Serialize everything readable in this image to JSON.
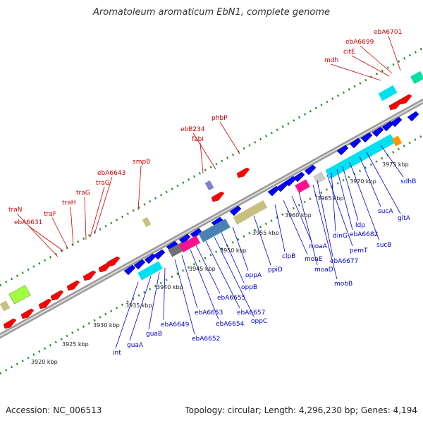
{
  "title": "Aromatoleum aromaticum EbN1, complete genome",
  "footer": {
    "accession": "Accession: NC_006513",
    "topology": "Topology: circular; Length: 4,296,230 bp; Genes: 4,194"
  },
  "colors": {
    "forward": "#ff0000",
    "reverse": "#0000ff",
    "cyan": "#00e0f0",
    "magenta": "#ff1090",
    "olive": "#c8c080",
    "lime": "#a0ff40",
    "teal": "#00e0a0",
    "steel": "#4a82b4",
    "grey": "#707070",
    "orange": "#ff9900",
    "violet": "#8080d0",
    "dot": "#2a8a2a",
    "backbone": "#999999"
  },
  "tick_labels": [
    "3920 kbp",
    "3925 kbp",
    "3930 kbp",
    "3935 kbp",
    "3940 kbp",
    "3945 kbp",
    "3950 kbp",
    "3955 kbp",
    "3960 kbp",
    "3965 kbp",
    "3970 kbp",
    "3975 kbp"
  ],
  "red_labels": [
    "traN",
    "ebA6631",
    "traF",
    "traH",
    "traG",
    "traG",
    "ebA6643",
    "smpB",
    "fabI",
    "ebB234",
    "phbP",
    "mdh",
    "citE",
    "ebA6699",
    "ebA6701"
  ],
  "blue_labels": [
    "int",
    "guaA",
    "guaB",
    "ebA6649",
    "ebA6652",
    "ebA6653",
    "ebA6654",
    "ebA6655",
    "ebA6657",
    "oppC",
    "oppB",
    "oppA",
    "ppiD",
    "clpB",
    "moaE",
    "moaA",
    "moaD",
    "mobB",
    "ebA6677",
    "pemT",
    "dinG",
    "ebA6682",
    "ldp",
    "sucB",
    "sucA",
    "gltA",
    "sdhB"
  ]
}
